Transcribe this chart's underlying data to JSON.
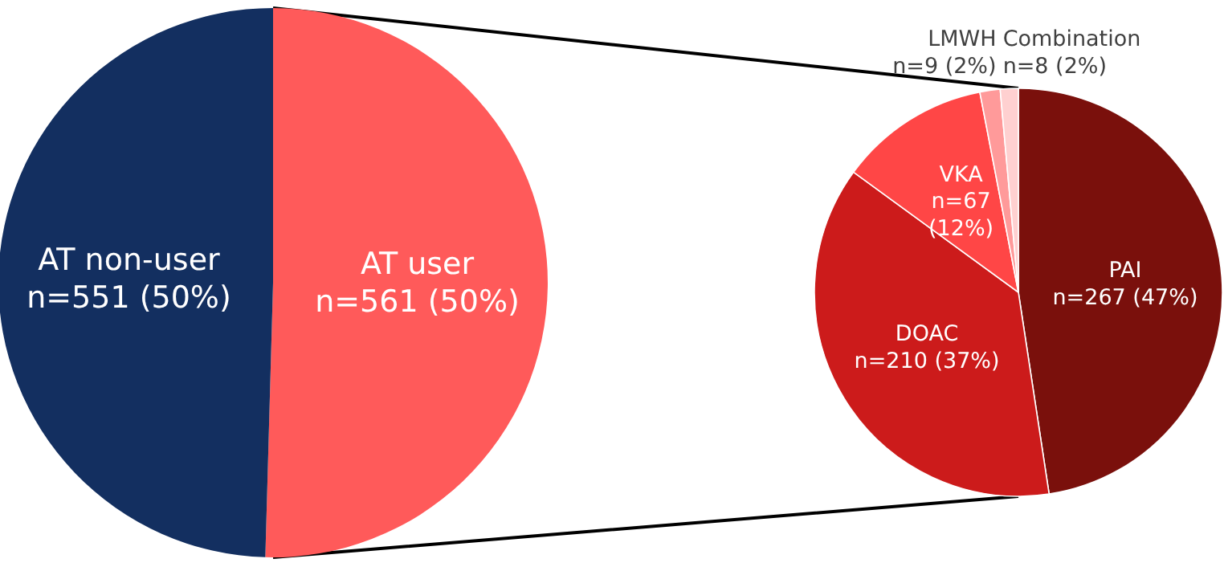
{
  "chart_data": [
    {
      "type": "pie",
      "categories": [
        "AT user",
        "AT non-user"
      ],
      "values": [
        561,
        551
      ],
      "colors": [
        "#ff5a5a",
        "#132f60"
      ],
      "value_labels": [
        "n=561 (50%)",
        "n=551 (50%)"
      ]
    },
    {
      "type": "pie",
      "categories": [
        "PAI",
        "DOAC",
        "VKA",
        "LMWH",
        "Combination"
      ],
      "values": [
        267,
        210,
        67,
        9,
        8
      ],
      "colors": [
        "#7a100c",
        "#cc1b1b",
        "#ff4646",
        "#ff9a9a",
        "#ffd0d0"
      ],
      "value_labels": [
        "n=267 (47%)",
        "n=210 (37%)",
        "n=67 (12%)",
        "n=9 (2%)",
        "n=8 (2%)"
      ]
    }
  ]
}
